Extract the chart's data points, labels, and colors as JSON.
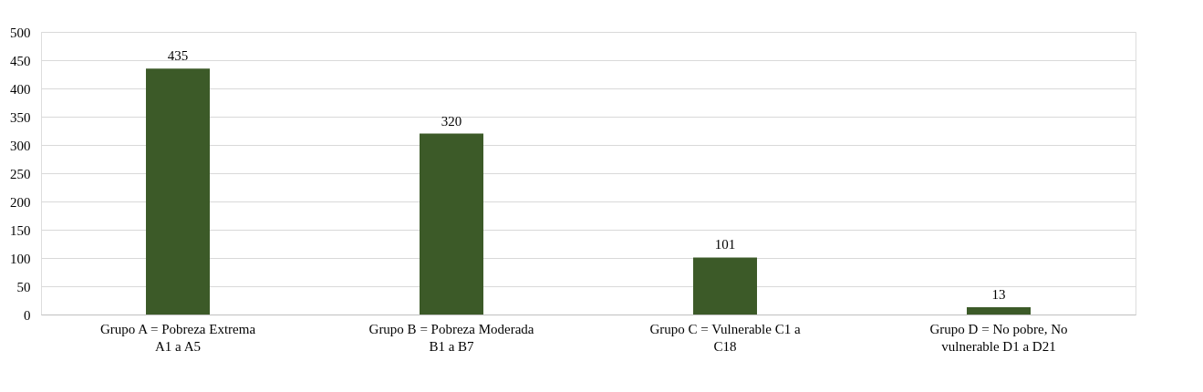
{
  "chart_data": {
    "type": "bar",
    "categories": [
      "Grupo A = Pobreza Extrema A1 a A5",
      "Grupo B = Pobreza Moderada B1 a B7",
      "Grupo C = Vulnerable C1 a C18",
      "Grupo D = No pobre, No vulnerable D1 a D21"
    ],
    "values": [
      435,
      320,
      101,
      13
    ],
    "color": "#3c5a28",
    "ylim": [
      0,
      500
    ],
    "yticks": [
      0,
      50,
      100,
      150,
      200,
      250,
      300,
      350,
      400,
      450,
      500
    ],
    "grid": "y",
    "data_labels": true
  }
}
